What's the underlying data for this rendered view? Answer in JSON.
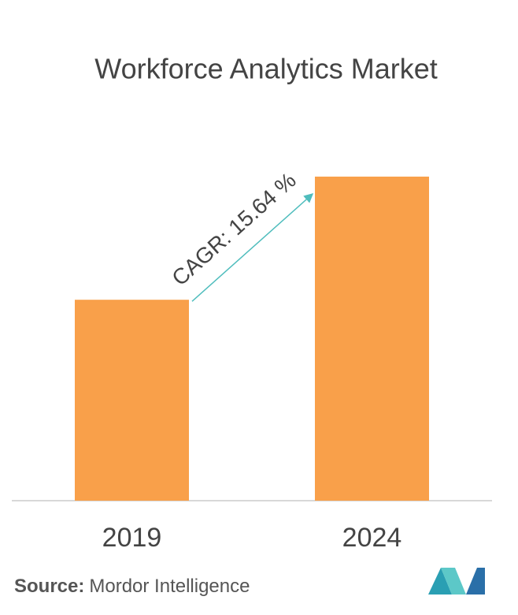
{
  "chart_data": {
    "type": "bar",
    "title": "Workforce Analytics Market",
    "categories": [
      "2019",
      "2024"
    ],
    "values": [
      62,
      100
    ],
    "color": "#f9a04a",
    "annotation": "CAGR: 15.64 %",
    "source_label": "Source:",
    "source": "Mordor Intelligence"
  }
}
